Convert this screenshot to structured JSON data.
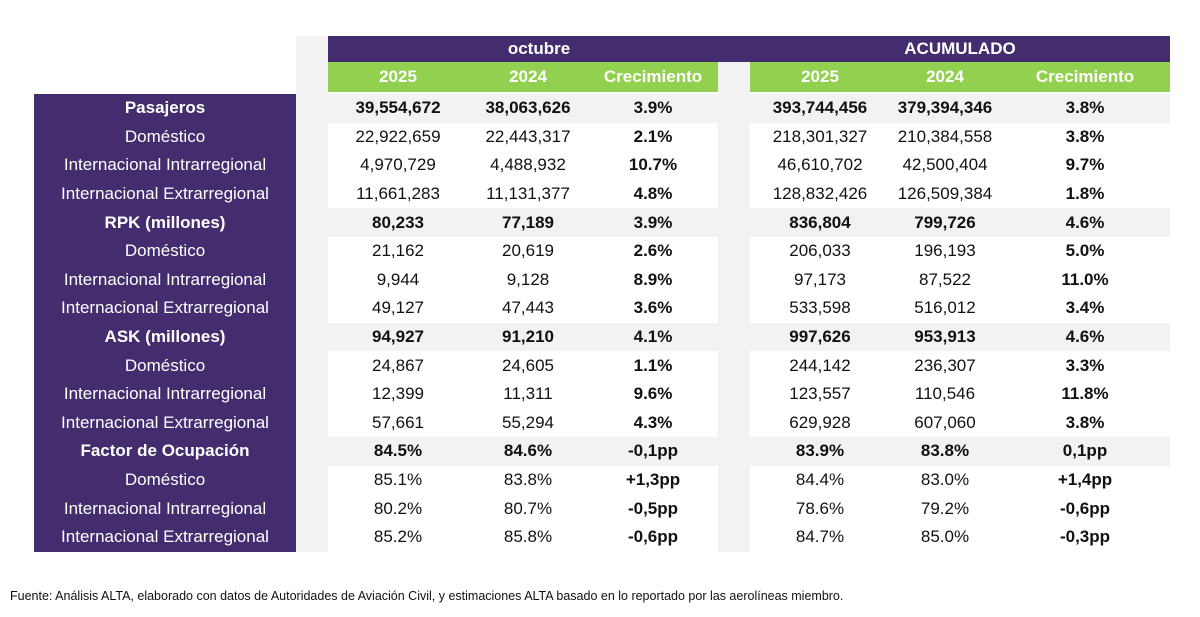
{
  "header": {
    "group_month": "octubre",
    "group_cumulative": "ACUMULADO",
    "columns": [
      "2025",
      "2024",
      "Crecimiento"
    ]
  },
  "colors": {
    "purple": "#432d6f",
    "green_header": "#92d050",
    "positive": "#00b050",
    "negative": "#ff0000"
  },
  "rows": [
    {
      "label": "Pasajeros",
      "bold": true,
      "month": [
        "39,554,672",
        "38,063,626",
        "3.9%"
      ],
      "cum": [
        "393,744,456",
        "379,394,346",
        "3.8%"
      ],
      "month_sign": "pos",
      "cum_sign": "pos"
    },
    {
      "label": "Doméstico",
      "bold": false,
      "month": [
        "22,922,659",
        "22,443,317",
        "2.1%"
      ],
      "cum": [
        "218,301,327",
        "210,384,558",
        "3.8%"
      ],
      "month_sign": "pos",
      "cum_sign": "pos"
    },
    {
      "label": "Internacional Intrarregional",
      "bold": false,
      "month": [
        "4,970,729",
        "4,488,932",
        "10.7%"
      ],
      "cum": [
        "46,610,702",
        "42,500,404",
        "9.7%"
      ],
      "month_sign": "pos",
      "cum_sign": "pos"
    },
    {
      "label": "Internacional Extrarregional",
      "bold": false,
      "month": [
        "11,661,283",
        "11,131,377",
        "4.8%"
      ],
      "cum": [
        "128,832,426",
        "126,509,384",
        "1.8%"
      ],
      "month_sign": "pos",
      "cum_sign": "pos"
    },
    {
      "label": "RPK (millones)",
      "bold": true,
      "month": [
        "80,233",
        "77,189",
        "3.9%"
      ],
      "cum": [
        "836,804",
        "799,726",
        "4.6%"
      ],
      "month_sign": "pos",
      "cum_sign": "pos"
    },
    {
      "label": "Doméstico",
      "bold": false,
      "month": [
        "21,162",
        "20,619",
        "2.6%"
      ],
      "cum": [
        "206,033",
        "196,193",
        "5.0%"
      ],
      "month_sign": "pos",
      "cum_sign": "pos"
    },
    {
      "label": "Internacional Intrarregional",
      "bold": false,
      "month": [
        "9,944",
        "9,128",
        "8.9%"
      ],
      "cum": [
        "97,173",
        "87,522",
        "11.0%"
      ],
      "month_sign": "pos",
      "cum_sign": "pos"
    },
    {
      "label": "Internacional Extrarregional",
      "bold": false,
      "month": [
        "49,127",
        "47,443",
        "3.6%"
      ],
      "cum": [
        "533,598",
        "516,012",
        "3.4%"
      ],
      "month_sign": "pos",
      "cum_sign": "pos"
    },
    {
      "label": "ASK (millones)",
      "bold": true,
      "month": [
        "94,927",
        "91,210",
        "4.1%"
      ],
      "cum": [
        "997,626",
        "953,913",
        "4.6%"
      ],
      "month_sign": "pos",
      "cum_sign": "pos"
    },
    {
      "label": "Doméstico",
      "bold": false,
      "month": [
        "24,867",
        "24,605",
        "1.1%"
      ],
      "cum": [
        "244,142",
        "236,307",
        "3.3%"
      ],
      "month_sign": "pos",
      "cum_sign": "pos"
    },
    {
      "label": "Internacional Intrarregional",
      "bold": false,
      "month": [
        "12,399",
        "11,311",
        "9.6%"
      ],
      "cum": [
        "123,557",
        "110,546",
        "11.8%"
      ],
      "month_sign": "pos",
      "cum_sign": "pos"
    },
    {
      "label": "Internacional Extrarregional",
      "bold": false,
      "month": [
        "57,661",
        "55,294",
        "4.3%"
      ],
      "cum": [
        "629,928",
        "607,060",
        "3.8%"
      ],
      "month_sign": "pos",
      "cum_sign": "pos"
    },
    {
      "label": "Factor de Ocupación",
      "bold": true,
      "month": [
        "84.5%",
        "84.6%",
        "-0,1pp"
      ],
      "cum": [
        "83.9%",
        "83.8%",
        "0,1pp"
      ],
      "month_sign": "neg",
      "cum_sign": "pos"
    },
    {
      "label": "Doméstico",
      "bold": false,
      "month": [
        "85.1%",
        "83.8%",
        "+1,3pp"
      ],
      "cum": [
        "84.4%",
        "83.0%",
        "+1,4pp"
      ],
      "month_sign": "pos",
      "cum_sign": "pos"
    },
    {
      "label": "Internacional Intrarregional",
      "bold": false,
      "month": [
        "80.2%",
        "80.7%",
        "-0,5pp"
      ],
      "cum": [
        "78.6%",
        "79.2%",
        "-0,6pp"
      ],
      "month_sign": "neg",
      "cum_sign": "neg"
    },
    {
      "label": "Internacional Extrarregional",
      "bold": false,
      "month": [
        "85.2%",
        "85.8%",
        "-0,6pp"
      ],
      "cum": [
        "84.7%",
        "85.0%",
        "-0,3pp"
      ],
      "month_sign": "neg",
      "cum_sign": "neg"
    }
  ],
  "footnote": "Fuente: Análisis ALTA, elaborado con datos de Autoridades de Aviación Civil,  y estimaciones ALTA basado en lo reportado por las aerolíneas miembro."
}
